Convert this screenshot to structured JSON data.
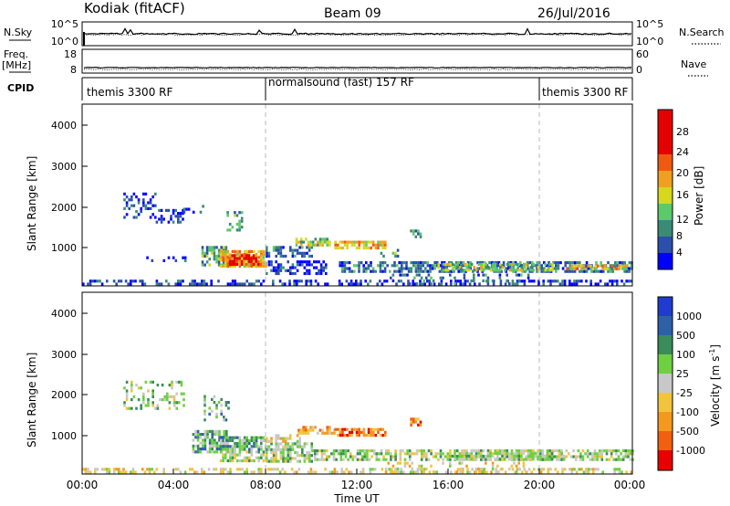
{
  "header": {
    "title": "Kodiak (fitACF)",
    "beam": "Beam 09",
    "date": "26/Jul/2016"
  },
  "noise_panel": {
    "left_label": "N.Sky",
    "left_ticks": [
      "10^5",
      "10^0"
    ],
    "right_label": "N.Search",
    "right_ticks": [
      "10^5",
      "10^0"
    ]
  },
  "freq_panel": {
    "left_label": "Freq.",
    "left_unit": "[MHz]",
    "left_ticks": [
      "18",
      "8"
    ],
    "right_label": "Nave",
    "right_ticks": [
      "60",
      "0"
    ]
  },
  "cpid": {
    "label": "CPID",
    "segments": [
      {
        "name": "themis 3300 RF",
        "start": 0,
        "end": 8
      },
      {
        "name": "normalsound (fast) 157 RF",
        "start": 8,
        "end": 20
      },
      {
        "name": "themis 3300 RF",
        "start": 20,
        "end": 24
      }
    ]
  },
  "axes": {
    "ylabel": "Slant Range [km]",
    "xlabel": "Time UT",
    "yticks": [
      "1000",
      "2000",
      "3000",
      "4000"
    ],
    "xticks": [
      "00:00",
      "04:00",
      "08:00",
      "12:00",
      "16:00",
      "20:00",
      "00:00"
    ]
  },
  "chart_data": [
    {
      "type": "heatmap",
      "title": "",
      "xlabel": "Time UT",
      "ylabel": "Slant Range [km]",
      "xlim": [
        0,
        24
      ],
      "ylim": [
        180,
        4600
      ],
      "xticks": [
        0,
        4,
        8,
        12,
        16,
        20,
        24
      ],
      "yticks": [
        1000,
        2000,
        3000,
        4000
      ],
      "vertical_markers": [
        8,
        20
      ],
      "colorbar": {
        "label": "Power [dB]",
        "range": [
          0,
          30
        ],
        "ticks": [
          "4",
          "8",
          "12",
          "16",
          "20",
          "24",
          "28"
        ],
        "colors": [
          "#0000ff",
          "#2b4faa",
          "#3a8a76",
          "#5cc96a",
          "#d6d81e",
          "#f0a020",
          "#f05a10",
          "#e30000"
        ]
      },
      "regions": [
        {
          "t0": 0.0,
          "t1": 24.0,
          "r0": 190,
          "r1": 330,
          "level": 1,
          "density": 0.45
        },
        {
          "t0": 1.8,
          "t1": 3.2,
          "r0": 1850,
          "r1": 2450,
          "level": 1,
          "density": 0.35
        },
        {
          "t0": 3.0,
          "t1": 4.4,
          "r0": 1700,
          "r1": 2050,
          "level": 1,
          "density": 0.45
        },
        {
          "t0": 4.4,
          "t1": 5.3,
          "r0": 1950,
          "r1": 2150,
          "level": 1,
          "density": 0.3
        },
        {
          "t0": 2.8,
          "t1": 4.8,
          "r0": 800,
          "r1": 900,
          "level": 1,
          "density": 0.3
        },
        {
          "t0": 5.2,
          "t1": 6.3,
          "r0": 700,
          "r1": 1150,
          "level": 3,
          "density": 0.7
        },
        {
          "t0": 6.0,
          "t1": 8.0,
          "r0": 650,
          "r1": 1050,
          "level": 5,
          "density": 0.8
        },
        {
          "t0": 6.4,
          "t1": 7.8,
          "r0": 700,
          "r1": 950,
          "level": 7,
          "density": 0.85
        },
        {
          "t0": 6.3,
          "t1": 7.0,
          "r0": 1550,
          "r1": 2000,
          "level": 3,
          "density": 0.4
        },
        {
          "t0": 8.0,
          "t1": 10.0,
          "r0": 900,
          "r1": 1150,
          "level": 2,
          "density": 0.55
        },
        {
          "t0": 8.0,
          "t1": 10.6,
          "r0": 500,
          "r1": 800,
          "level": 1,
          "density": 0.5
        },
        {
          "t0": 9.3,
          "t1": 10.8,
          "r0": 1150,
          "r1": 1350,
          "level": 4,
          "density": 0.6
        },
        {
          "t0": 11.0,
          "t1": 13.2,
          "r0": 1130,
          "r1": 1280,
          "level": 5,
          "density": 0.75
        },
        {
          "t0": 13.0,
          "t1": 13.8,
          "r0": 900,
          "r1": 1080,
          "level": 3,
          "density": 0.5
        },
        {
          "t0": 14.3,
          "t1": 14.8,
          "r0": 1350,
          "r1": 1550,
          "level": 3,
          "density": 0.6
        },
        {
          "t0": 11.2,
          "t1": 24.0,
          "r0": 550,
          "r1": 780,
          "level": 2,
          "density": 0.65
        },
        {
          "t0": 15.5,
          "t1": 20.5,
          "r0": 580,
          "r1": 740,
          "level": 4,
          "density": 0.5
        },
        {
          "t0": 21.0,
          "t1": 24.0,
          "r0": 560,
          "r1": 700,
          "level": 5,
          "density": 0.55
        },
        {
          "t0": 13.0,
          "t1": 19.5,
          "r0": 200,
          "r1": 480,
          "level": 2,
          "density": 0.2
        }
      ]
    },
    {
      "type": "heatmap",
      "title": "",
      "xlabel": "Time UT",
      "ylabel": "Slant Range [km]",
      "xlim": [
        0,
        24
      ],
      "ylim": [
        180,
        4600
      ],
      "xticks": [
        0,
        4,
        8,
        12,
        16,
        20,
        24
      ],
      "yticks": [
        1000,
        2000,
        3000,
        4000
      ],
      "vertical_markers": [
        8,
        20
      ],
      "colorbar": {
        "label": "Velocity [m s^-1]",
        "ticks": [
          "1000",
          "500",
          "100",
          "25",
          "-25",
          "-100",
          "-500",
          "-1000"
        ],
        "colors": [
          "#1f3ccf",
          "#2e60a8",
          "#3b8c5a",
          "#6ed040",
          "#c8c8c8",
          "#f2c33c",
          "#f39a1e",
          "#f06010",
          "#e70000"
        ]
      },
      "regions": [
        {
          "t0": 0.0,
          "t1": 24.0,
          "r0": 190,
          "r1": 330,
          "level": 5,
          "density": 0.45
        },
        {
          "t0": 1.8,
          "t1": 4.4,
          "r0": 1750,
          "r1": 2450,
          "level": 4,
          "density": 0.3
        },
        {
          "t0": 4.8,
          "t1": 6.3,
          "r0": 750,
          "r1": 1250,
          "level": 3,
          "density": 0.75
        },
        {
          "t0": 5.3,
          "t1": 6.4,
          "r0": 1500,
          "r1": 2100,
          "level": 3,
          "density": 0.35
        },
        {
          "t0": 6.0,
          "t1": 8.0,
          "r0": 750,
          "r1": 1100,
          "level": 3,
          "density": 0.8
        },
        {
          "t0": 6.0,
          "t1": 8.0,
          "r0": 480,
          "r1": 750,
          "level": 4,
          "density": 0.6
        },
        {
          "t0": 8.0,
          "t1": 10.0,
          "r0": 480,
          "r1": 950,
          "level": 4,
          "density": 0.7
        },
        {
          "t0": 8.0,
          "t1": 9.5,
          "r0": 950,
          "r1": 1150,
          "level": 5,
          "density": 0.55
        },
        {
          "t0": 9.4,
          "t1": 11.0,
          "r0": 1150,
          "r1": 1350,
          "level": 6,
          "density": 0.65
        },
        {
          "t0": 11.0,
          "t1": 13.2,
          "r0": 1150,
          "r1": 1300,
          "level": 7,
          "density": 0.75
        },
        {
          "t0": 14.3,
          "t1": 14.8,
          "r0": 1350,
          "r1": 1550,
          "level": 7,
          "density": 0.6
        },
        {
          "t0": 10.0,
          "t1": 24.0,
          "r0": 500,
          "r1": 780,
          "level": 4,
          "density": 0.65
        },
        {
          "t0": 16.0,
          "t1": 21.0,
          "r0": 560,
          "r1": 720,
          "level": 4,
          "density": 0.55
        },
        {
          "t0": 13.0,
          "t1": 19.5,
          "r0": 200,
          "r1": 480,
          "level": 5,
          "density": 0.2
        }
      ]
    }
  ],
  "power_panel": {
    "colorbar_label": "Power [dB]",
    "colorbar_ticks": [
      "4",
      "8",
      "12",
      "16",
      "20",
      "24",
      "28"
    ]
  },
  "velocity_panel": {
    "colorbar_label": "Velocity [m s",
    "colorbar_label_sup": "-1",
    "colorbar_label_end": "]",
    "colorbar_ticks": [
      "1000",
      "500",
      "100",
      "25",
      "-25",
      "-100",
      "-500",
      "-1000"
    ]
  }
}
